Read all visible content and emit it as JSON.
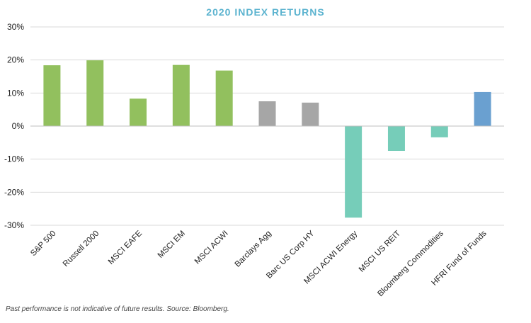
{
  "chart_data": {
    "type": "bar",
    "title": "2020 INDEX RETURNS",
    "categories": [
      "S&P 500",
      "Russell 2000",
      "MSCI EAFE",
      "MSCI EM",
      "MSCI ACWI",
      "Barclays Agg",
      "Barc US Corp HY",
      "MSCI ACWI Energy",
      "MSCI US REIT",
      "Bloomberg Commodities",
      "HFRI Fund of Funds"
    ],
    "values": [
      18.4,
      19.9,
      8.3,
      18.5,
      16.8,
      7.5,
      7.1,
      -27.7,
      -7.5,
      -3.4,
      10.3
    ],
    "bar_colors": [
      "#92C05E",
      "#92C05E",
      "#92C05E",
      "#92C05E",
      "#92C05E",
      "#A6A6A6",
      "#A6A6A6",
      "#76CDB9",
      "#76CDB9",
      "#76CDB9",
      "#6AA0D0"
    ],
    "ylim": [
      -30,
      30
    ],
    "yticks": [
      30,
      20,
      10,
      0,
      -10,
      -20,
      -30
    ],
    "ytick_labels": [
      "30%",
      "20%",
      "10%",
      "0%",
      "-10%",
      "-20%",
      "-30%"
    ],
    "xlabel": "",
    "ylabel": "",
    "grid": true,
    "legend": "none"
  },
  "footnote": "Past performance is not indicative of future results. Source: Bloomberg."
}
